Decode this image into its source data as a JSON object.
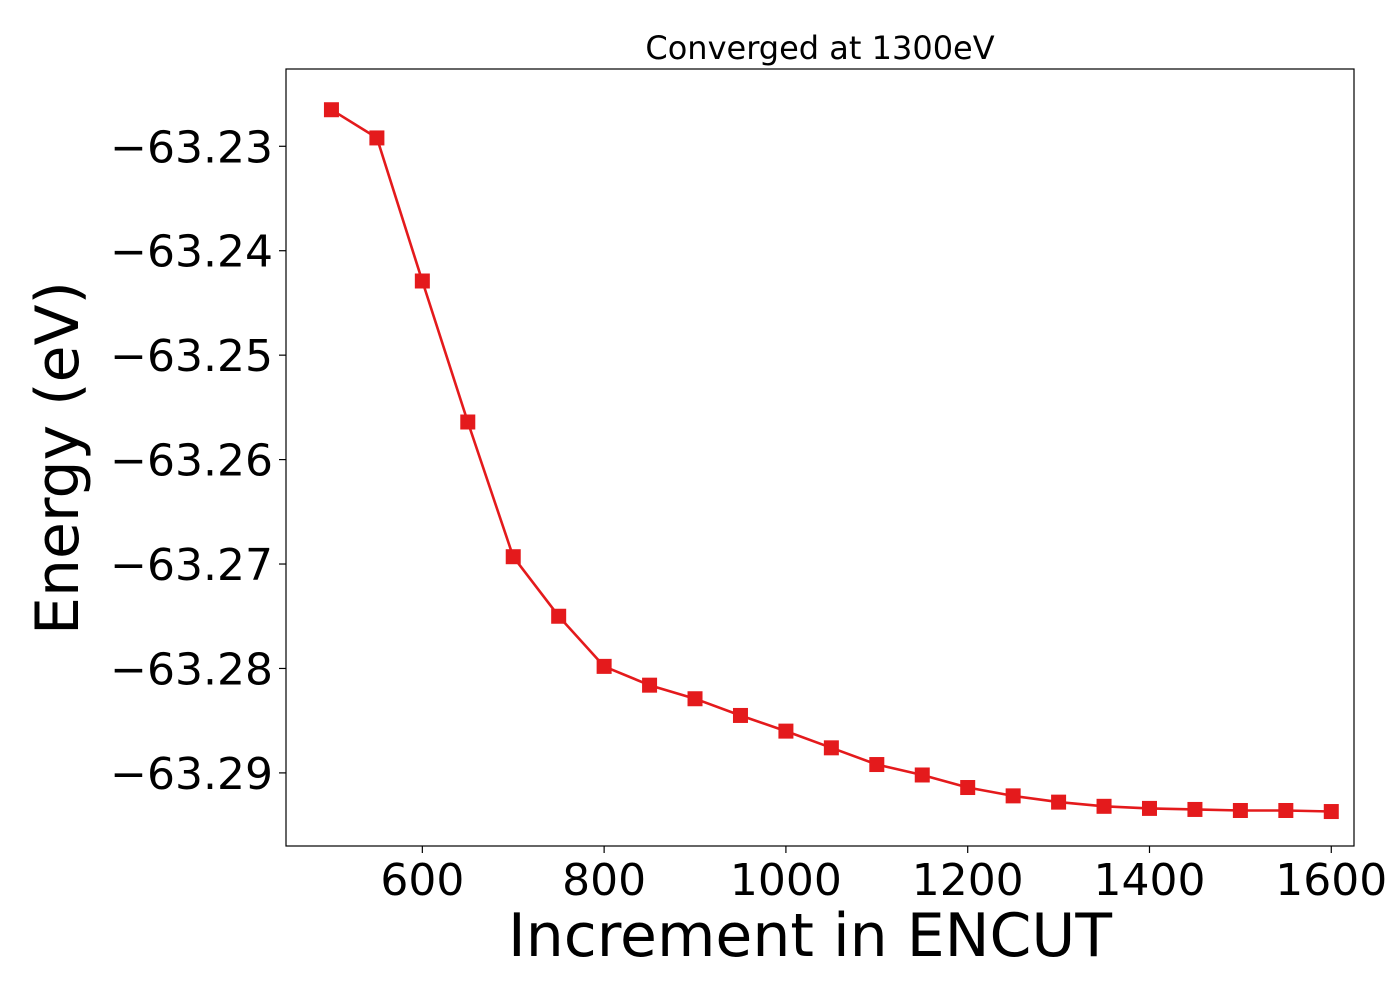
{
  "chart_data": {
    "type": "line",
    "title": "Converged at 1300eV",
    "xlabel": "Increment in ENCUT",
    "ylabel": "Energy (eV)",
    "xlim": [
      450,
      1625
    ],
    "ylim": [
      -63.297,
      -63.2226
    ],
    "xticks": [
      600,
      800,
      1000,
      1200,
      1400,
      1600
    ],
    "xtick_labels": [
      "600",
      "800",
      "1000",
      "1200",
      "1400",
      "1600"
    ],
    "yticks": [
      -63.23,
      -63.24,
      -63.25,
      -63.26,
      -63.27,
      -63.28,
      -63.29
    ],
    "ytick_labels": [
      "−63.23",
      "−63.24",
      "−63.25",
      "−63.26",
      "−63.27",
      "−63.28",
      "−63.29"
    ],
    "grid": false,
    "series": [
      {
        "color": "#e41a1c",
        "marker": "square",
        "x": [
          500,
          550,
          600,
          650,
          700,
          750,
          800,
          850,
          900,
          950,
          1000,
          1050,
          1100,
          1150,
          1200,
          1250,
          1300,
          1350,
          1400,
          1450,
          1500,
          1550,
          1600
        ],
        "y": [
          -63.2265,
          -63.2292,
          -63.2429,
          -63.2564,
          -63.2693,
          -63.275,
          -63.2798,
          -63.2816,
          -63.2829,
          -63.2845,
          -63.286,
          -63.2876,
          -63.2892,
          -63.2902,
          -63.2914,
          -63.2922,
          -63.2928,
          -63.2932,
          -63.2934,
          -63.2935,
          -63.2936,
          -63.2936,
          -63.2937
        ]
      }
    ]
  }
}
